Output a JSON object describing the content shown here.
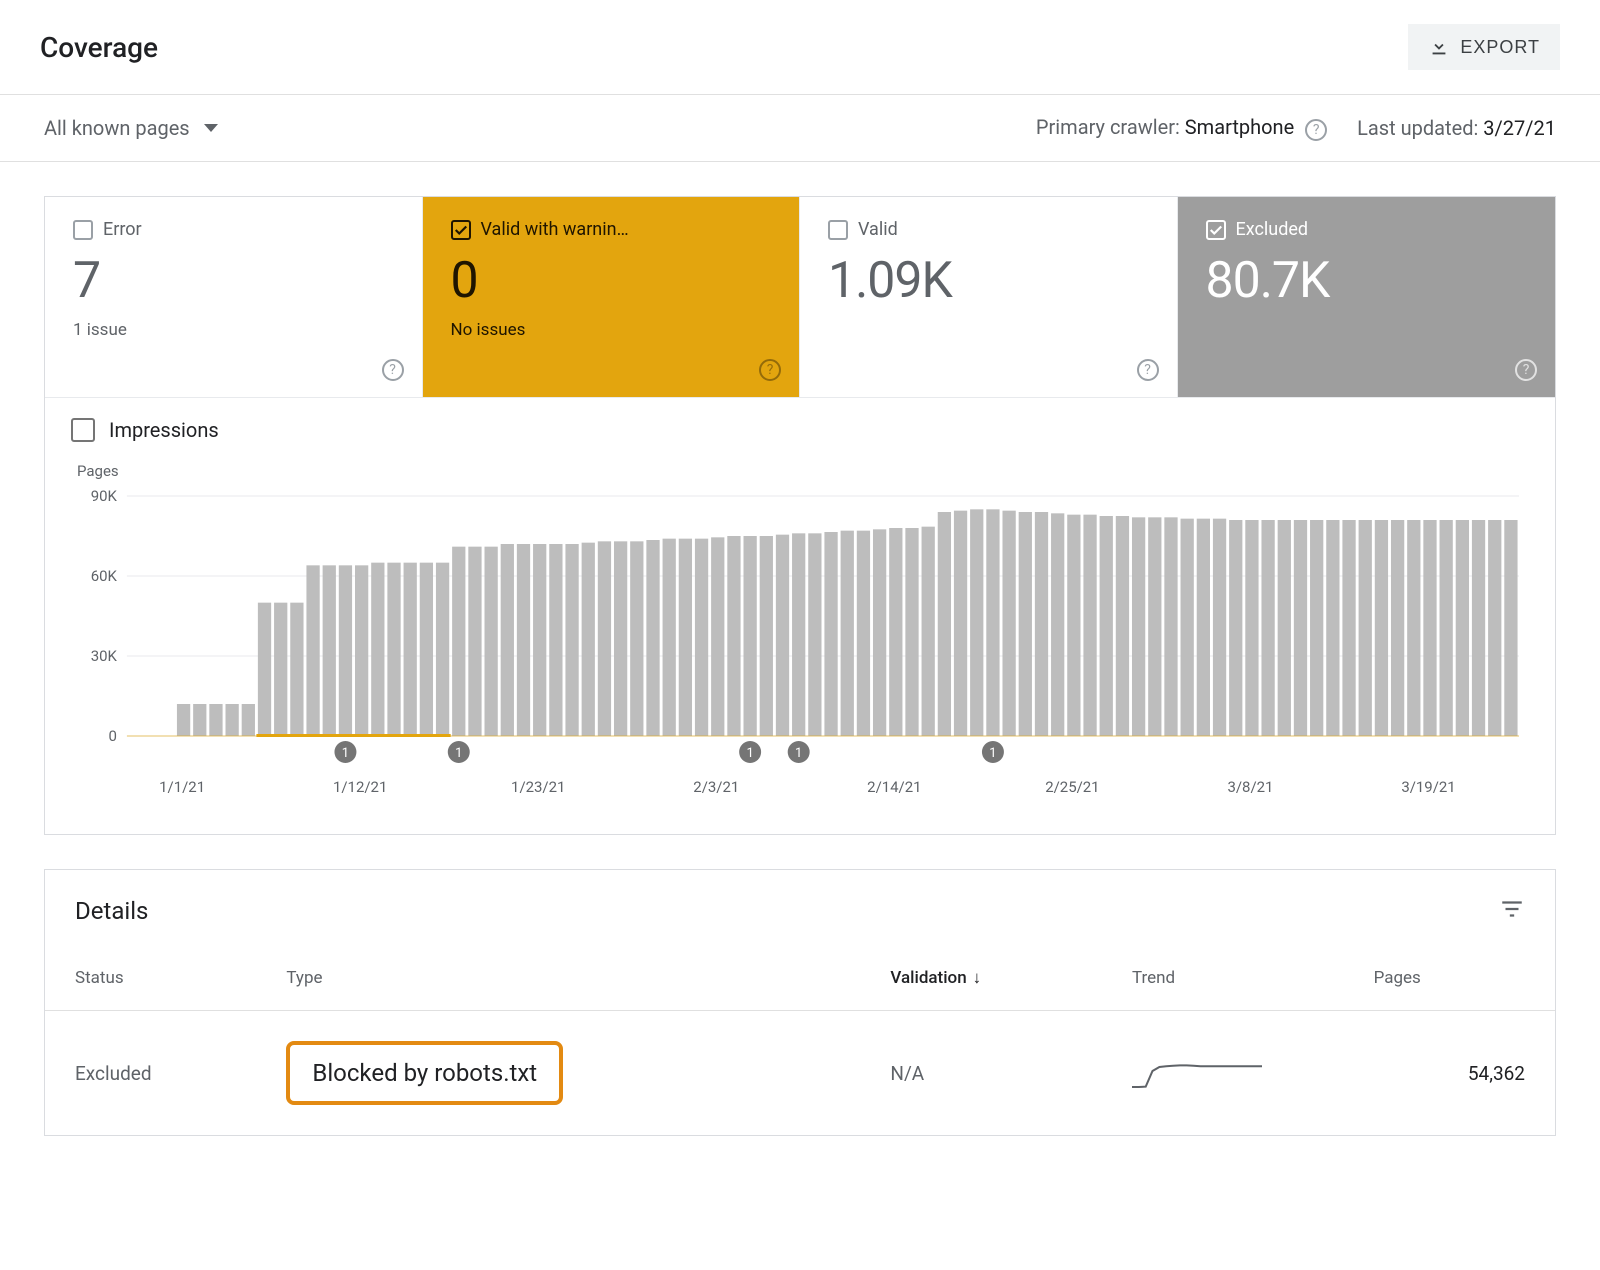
{
  "header": {
    "title": "Coverage",
    "export": "EXPORT"
  },
  "filter": {
    "selector": "All known pages",
    "crawler_label": "Primary crawler: ",
    "crawler_value": "Smartphone",
    "updated_label": "Last updated: ",
    "updated_value": "3/27/21"
  },
  "stats": {
    "error": {
      "label": "Error",
      "value": "7",
      "sub": "1 issue",
      "checked": false,
      "selected": false
    },
    "warning": {
      "label": "Valid with warnin…",
      "value": "0",
      "sub": "No issues",
      "checked": true,
      "selected": "warn"
    },
    "valid": {
      "label": "Valid",
      "value": "1.09K",
      "sub": "",
      "checked": false,
      "selected": false
    },
    "excluded": {
      "label": "Excluded",
      "value": "80.7K",
      "sub": "",
      "checked": true,
      "selected": "excl"
    }
  },
  "impressions": {
    "label": "Impressions",
    "checked": false
  },
  "chart": {
    "y_label": "Pages",
    "type": "bar",
    "y_ticks": [
      0,
      30000,
      60000,
      90000
    ],
    "y_tick_labels": [
      "0",
      "30K",
      "60K",
      "90K"
    ],
    "ylim": [
      0,
      90000
    ],
    "x_dates": [
      "1/1/21",
      "1/12/21",
      "1/23/21",
      "2/3/21",
      "2/14/21",
      "2/25/21",
      "3/8/21",
      "3/19/21"
    ],
    "x_date_indices": [
      3,
      14,
      25,
      36,
      47,
      58,
      69,
      80
    ],
    "marker_indices": [
      13,
      20,
      38,
      41,
      53
    ],
    "marker_label": "1",
    "bars": [
      0,
      0,
      0,
      12000,
      12000,
      12000,
      12000,
      12000,
      50000,
      50000,
      50000,
      64000,
      64000,
      64000,
      64000,
      65000,
      65000,
      65000,
      65000,
      65000,
      71000,
      71000,
      71000,
      72000,
      72000,
      72000,
      72000,
      72000,
      72500,
      73000,
      73000,
      73000,
      73500,
      74000,
      74000,
      74000,
      74500,
      75000,
      75000,
      75000,
      75500,
      76000,
      76000,
      76500,
      77000,
      77000,
      77500,
      78000,
      78000,
      78500,
      84000,
      84500,
      85000,
      85000,
      84500,
      84000,
      84000,
      83500,
      83000,
      83000,
      82500,
      82500,
      82000,
      82000,
      82000,
      81500,
      81500,
      81500,
      81000,
      81000,
      81000,
      81000,
      81000,
      81000,
      81000,
      81000,
      81000,
      81000,
      81000,
      81000,
      81000,
      81000,
      81000,
      81000,
      81000,
      81000
    ],
    "bar_color": "#bdbdbd",
    "grid_color": "#e8eaed",
    "highlight_color": "#e3a50e",
    "highlight_range": [
      8,
      19
    ],
    "background": "#ffffff",
    "tick_fontsize": 15,
    "tick_color": "#5f6368",
    "marker_bg": "#757575",
    "marker_fg": "#ffffff"
  },
  "details": {
    "title": "Details",
    "columns": {
      "status": "Status",
      "type": "Type",
      "validation": "Validation",
      "trend": "Trend",
      "pages": "Pages"
    },
    "rows": [
      {
        "status": "Excluded",
        "type": "Blocked by robots.txt",
        "type_highlighted": true,
        "validation": "N/A",
        "pages": "54,362",
        "trend_points": [
          0.1,
          0.1,
          0.11,
          0.5,
          0.6,
          0.62,
          0.63,
          0.64,
          0.64,
          0.63,
          0.62,
          0.62,
          0.62,
          0.62,
          0.62,
          0.62,
          0.62,
          0.62,
          0.62,
          0.62
        ]
      }
    ]
  },
  "colors": {
    "warn_bg": "#e3a50e",
    "excl_bg": "#9e9e9e",
    "highlight_border": "#e38a12"
  }
}
